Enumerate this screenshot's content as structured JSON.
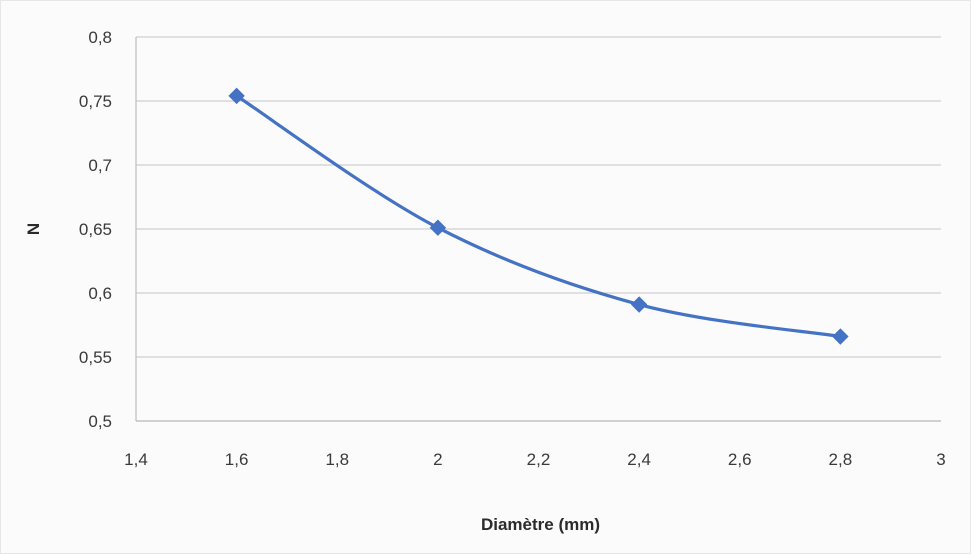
{
  "chart_data": {
    "type": "line",
    "title": "",
    "xlabel": "Diamètre (mm)",
    "ylabel": "N",
    "xlim": [
      1.4,
      3
    ],
    "ylim": [
      0.5,
      0.8
    ],
    "x_ticks": [
      "1,4",
      "1,6",
      "1,8",
      "2",
      "2,2",
      "2,4",
      "2,6",
      "2,8",
      "3"
    ],
    "y_ticks": [
      "0,5",
      "0,55",
      "0,6",
      "0,65",
      "0,7",
      "0,75",
      "0,8"
    ],
    "grid": "horizontal",
    "legend": "none",
    "series": [
      {
        "color": "#4472c4",
        "marker": "diamond",
        "smooth": true,
        "x": [
          1.6,
          2.0,
          2.4,
          2.8
        ],
        "y": [
          0.754,
          0.651,
          0.591,
          0.566
        ]
      }
    ]
  }
}
